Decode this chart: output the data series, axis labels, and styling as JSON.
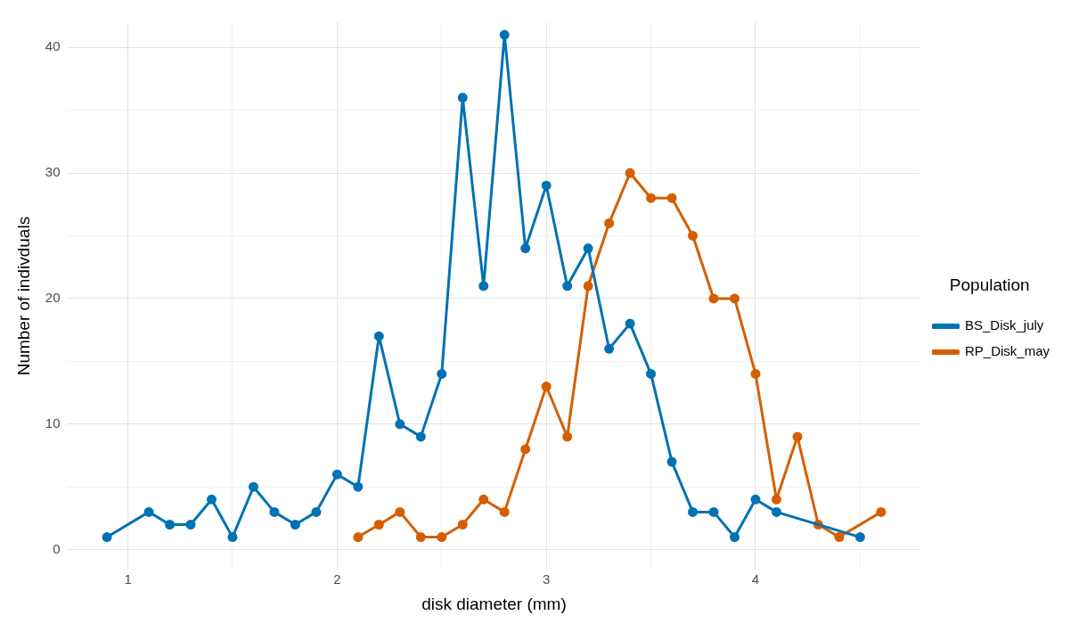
{
  "chart_data": {
    "type": "line",
    "xlabel": "disk diameter (mm)",
    "ylabel": "Number of indivduals",
    "legend_title": "Population",
    "legend": "right",
    "grid": true,
    "marker": "circle",
    "line_style": "solid",
    "xlim": [
      0.71,
      4.79
    ],
    "ylim": [
      -1.6,
      42
    ],
    "xticks": [
      1,
      {
        "value": 1.5,
        "label": null
      },
      2,
      {
        "value": 2.5,
        "label": null
      },
      3,
      {
        "value": 3.5,
        "label": null
      },
      4,
      {
        "value": 4.5,
        "label": null
      }
    ],
    "yticks": [
      0,
      {
        "value": 5,
        "label": null
      },
      10,
      {
        "value": 15,
        "label": null
      },
      20,
      {
        "value": 25,
        "label": null
      },
      30,
      {
        "value": 35,
        "label": null
      },
      40
    ],
    "series": [
      {
        "name": "BS_Disk_july",
        "color": "#0072b2",
        "x": [
          0.9,
          1.1,
          1.2,
          1.3,
          1.4,
          1.5,
          1.6,
          1.7,
          1.8,
          1.9,
          2.0,
          2.1,
          2.2,
          2.3,
          2.4,
          2.5,
          2.6,
          2.7,
          2.8,
          2.9,
          3.0,
          3.1,
          3.2,
          3.3,
          3.4,
          3.5,
          3.6,
          3.7,
          3.8,
          3.9,
          4.0,
          4.1,
          4.5
        ],
        "values": [
          1,
          3,
          2,
          2,
          4,
          1,
          5,
          3,
          2,
          3,
          6,
          5,
          17,
          10,
          9,
          14,
          36,
          21,
          41,
          24,
          29,
          21,
          24,
          16,
          18,
          14,
          7,
          3,
          3,
          1,
          4,
          3,
          1
        ]
      },
      {
        "name": "RP_Disk_may",
        "color": "#d55e00",
        "x": [
          2.1,
          2.2,
          2.3,
          2.4,
          2.5,
          2.6,
          2.7,
          2.8,
          2.9,
          3.0,
          3.1,
          3.2,
          3.3,
          3.4,
          3.5,
          3.6,
          3.7,
          3.8,
          3.9,
          4.0,
          4.1,
          4.2,
          4.3,
          4.4,
          4.6
        ],
        "values": [
          1,
          2,
          3,
          1,
          1,
          2,
          4,
          3,
          8,
          13,
          9,
          21,
          26,
          30,
          28,
          28,
          25,
          20,
          20,
          14,
          4,
          9,
          2,
          1,
          3
        ]
      }
    ]
  }
}
